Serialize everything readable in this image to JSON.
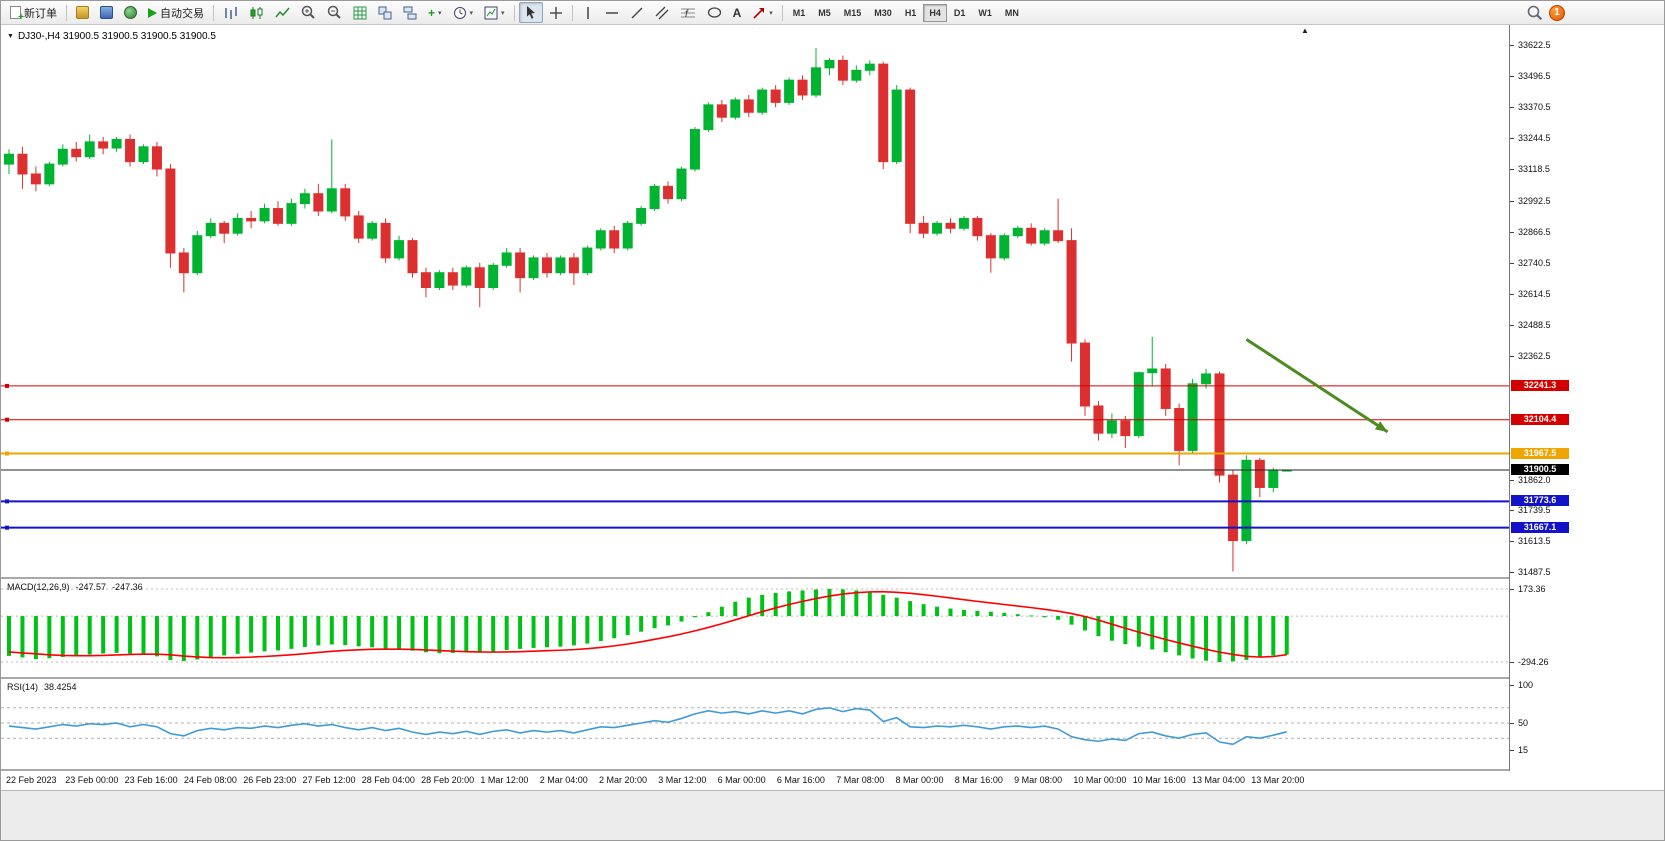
{
  "toolbar": {
    "new_order": "新订单",
    "autotrading": "自动交易",
    "timeframes": [
      "M1",
      "M5",
      "M15",
      "M30",
      "H1",
      "H4",
      "D1",
      "W1",
      "MN"
    ],
    "active_timeframe": "H4",
    "notification_count": "1"
  },
  "chart": {
    "title": "DJ30-,H4 31900.5 31900.5 31900.5 31900.5",
    "price_axis_labels": [
      "33622.5",
      "33496.5",
      "33370.5",
      "33244.5",
      "33118.5",
      "32992.5",
      "32866.5",
      "32740.5",
      "32614.5",
      "32488.5",
      "32362.5",
      "31862.0",
      "31739.5",
      "31613.5",
      "31487.5"
    ],
    "levels": [
      {
        "label": "32241.3",
        "value": 32241.3,
        "color": "#d40000",
        "width": 1
      },
      {
        "label": "32104.4",
        "value": 32104.4,
        "color": "#d40000",
        "width": 1
      },
      {
        "label": "31967.5",
        "value": 31967.5,
        "color": "#efa500",
        "width": 2
      },
      {
        "label": "31773.6",
        "value": 31773.6,
        "color": "#1212c8",
        "width": 2
      },
      {
        "label": "31667.1",
        "value": 31667.1,
        "color": "#1212c8",
        "width": 2
      }
    ],
    "current_price": {
      "label": "31900.5",
      "value": 31900.5,
      "color": "#000000",
      "width": 1
    }
  },
  "indicators": {
    "macd": {
      "label": "MACD(12,26,9)",
      "value_main": "-247.57",
      "value_signal": "-247.36",
      "axis_labels": [
        "173.36",
        "-294.26"
      ]
    },
    "rsi": {
      "label": "RSI(14)",
      "value": "38.4254",
      "axis_labels": [
        "100",
        "50",
        "15"
      ]
    }
  },
  "time_axis": [
    "22 Feb 2023",
    "23 Feb 00:00",
    "23 Feb 16:00",
    "24 Feb 08:00",
    "26 Feb 23:00",
    "27 Feb 12:00",
    "28 Feb 04:00",
    "28 Feb 20:00",
    "1 Mar 12:00",
    "2 Mar 04:00",
    "2 Mar 20:00",
    "3 Mar 12:00",
    "6 Mar 00:00",
    "6 Mar 16:00",
    "7 Mar 08:00",
    "8 Mar 00:00",
    "8 Mar 16:00",
    "9 Mar 08:00",
    "10 Mar 00:00",
    "10 Mar 16:00",
    "13 Mar 04:00",
    "13 Mar 20:00"
  ],
  "chart_data": {
    "type": "candlestick",
    "symbol": "DJ30-",
    "timeframe": "H4",
    "last_price": 31900.5,
    "price_range": [
      31487.5,
      33622.5
    ],
    "candles": [
      [
        33140,
        33200,
        33100,
        33180
      ],
      [
        33180,
        33210,
        33040,
        33100
      ],
      [
        33100,
        33130,
        33030,
        33060
      ],
      [
        33060,
        33150,
        33050,
        33140
      ],
      [
        33140,
        33220,
        33130,
        33200
      ],
      [
        33200,
        33230,
        33150,
        33170
      ],
      [
        33170,
        33260,
        33160,
        33230
      ],
      [
        33230,
        33250,
        33180,
        33205
      ],
      [
        33205,
        33250,
        33190,
        33240
      ],
      [
        33240,
        33260,
        33130,
        33150
      ],
      [
        33150,
        33220,
        33140,
        33210
      ],
      [
        33210,
        33230,
        33090,
        33120
      ],
      [
        33120,
        33140,
        32720,
        32780
      ],
      [
        32780,
        32800,
        32620,
        32700
      ],
      [
        32700,
        32870,
        32690,
        32850
      ],
      [
        32850,
        32920,
        32840,
        32900
      ],
      [
        32900,
        32910,
        32820,
        32860
      ],
      [
        32860,
        32940,
        32850,
        32920
      ],
      [
        32920,
        32950,
        32880,
        32910
      ],
      [
        32910,
        32980,
        32900,
        32960
      ],
      [
        32960,
        32990,
        32890,
        32900
      ],
      [
        32900,
        33000,
        32890,
        32980
      ],
      [
        32980,
        33040,
        32960,
        33020
      ],
      [
        33020,
        33060,
        32930,
        32950
      ],
      [
        32950,
        33240,
        32940,
        33040
      ],
      [
        33040,
        33060,
        32910,
        32930
      ],
      [
        32930,
        32950,
        32820,
        32840
      ],
      [
        32840,
        32910,
        32830,
        32900
      ],
      [
        32900,
        32920,
        32740,
        32760
      ],
      [
        32760,
        32850,
        32750,
        32830
      ],
      [
        32830,
        32840,
        32680,
        32700
      ],
      [
        32700,
        32720,
        32600,
        32640
      ],
      [
        32640,
        32710,
        32630,
        32700
      ],
      [
        32700,
        32720,
        32630,
        32650
      ],
      [
        32650,
        32730,
        32640,
        32720
      ],
      [
        32720,
        32740,
        32560,
        32640
      ],
      [
        32640,
        32740,
        32630,
        32730
      ],
      [
        32730,
        32800,
        32720,
        32780
      ],
      [
        32780,
        32800,
        32620,
        32680
      ],
      [
        32680,
        32770,
        32670,
        32760
      ],
      [
        32760,
        32780,
        32680,
        32700
      ],
      [
        32700,
        32770,
        32690,
        32760
      ],
      [
        32760,
        32780,
        32650,
        32700
      ],
      [
        32700,
        32810,
        32690,
        32800
      ],
      [
        32800,
        32880,
        32790,
        32870
      ],
      [
        32870,
        32890,
        32780,
        32800
      ],
      [
        32800,
        32910,
        32790,
        32900
      ],
      [
        32900,
        32970,
        32890,
        32960
      ],
      [
        32960,
        33060,
        32950,
        33050
      ],
      [
        33050,
        33070,
        32980,
        33000
      ],
      [
        33000,
        33130,
        32990,
        33120
      ],
      [
        33120,
        33290,
        33110,
        33280
      ],
      [
        33280,
        33390,
        33270,
        33380
      ],
      [
        33380,
        33400,
        33310,
        33330
      ],
      [
        33330,
        33410,
        33320,
        33400
      ],
      [
        33400,
        33420,
        33330,
        33350
      ],
      [
        33350,
        33450,
        33340,
        33440
      ],
      [
        33440,
        33460,
        33370,
        33390
      ],
      [
        33390,
        33490,
        33380,
        33480
      ],
      [
        33480,
        33500,
        33400,
        33420
      ],
      [
        33420,
        33610,
        33410,
        33530
      ],
      [
        33530,
        33570,
        33500,
        33560
      ],
      [
        33560,
        33580,
        33460,
        33480
      ],
      [
        33480,
        33540,
        33470,
        33520
      ],
      [
        33520,
        33560,
        33500,
        33545
      ],
      [
        33545,
        33555,
        33120,
        33150
      ],
      [
        33150,
        33460,
        33140,
        33440
      ],
      [
        33440,
        33450,
        32860,
        32900
      ],
      [
        32900,
        32930,
        32840,
        32860
      ],
      [
        32860,
        32910,
        32850,
        32900
      ],
      [
        32900,
        32920,
        32860,
        32880
      ],
      [
        32880,
        32930,
        32870,
        32920
      ],
      [
        32920,
        32930,
        32830,
        32850
      ],
      [
        32850,
        32860,
        32700,
        32760
      ],
      [
        32760,
        32860,
        32750,
        32850
      ],
      [
        32850,
        32890,
        32840,
        32880
      ],
      [
        32880,
        32900,
        32810,
        32820
      ],
      [
        32820,
        32880,
        32810,
        32870
      ],
      [
        32870,
        33000,
        32820,
        32830
      ],
      [
        32830,
        32880,
        32340,
        32415
      ],
      [
        32415,
        32430,
        32120,
        32160
      ],
      [
        32160,
        32180,
        32020,
        32050
      ],
      [
        32050,
        32130,
        32030,
        32100
      ],
      [
        32100,
        32120,
        31990,
        32040
      ],
      [
        32040,
        32300,
        32030,
        32295
      ],
      [
        32295,
        32440,
        32240,
        32310
      ],
      [
        32310,
        32330,
        32120,
        32150
      ],
      [
        32150,
        32170,
        31920,
        31980
      ],
      [
        31980,
        32270,
        31970,
        32250
      ],
      [
        32250,
        32310,
        32230,
        32290
      ],
      [
        32290,
        32300,
        31850,
        31880
      ],
      [
        31880,
        31900,
        31490,
        31615
      ],
      [
        31615,
        31960,
        31600,
        31940
      ],
      [
        31940,
        31950,
        31790,
        31830
      ],
      [
        31830,
        31910,
        31810,
        31900.5
      ],
      [
        31900.5,
        31900.5,
        31900.5,
        31900.5
      ]
    ],
    "macd": {
      "range": [
        -294.26,
        173.36
      ],
      "histogram": [
        -255,
        -265,
        -275,
        -270,
        -262,
        -252,
        -246,
        -240,
        -236,
        -240,
        -248,
        -258,
        -282,
        -288,
        -278,
        -265,
        -252,
        -242,
        -234,
        -226,
        -220,
        -210,
        -198,
        -188,
        -182,
        -186,
        -194,
        -200,
        -208,
        -214,
        -222,
        -232,
        -238,
        -236,
        -230,
        -234,
        -228,
        -218,
        -210,
        -204,
        -200,
        -196,
        -188,
        -176,
        -160,
        -142,
        -122,
        -100,
        -78,
        -60,
        -35,
        -8,
        25,
        60,
        92,
        118,
        136,
        148,
        158,
        164,
        170,
        173.36,
        171,
        164,
        152,
        136,
        118,
        96,
        76,
        60,
        48,
        40,
        34,
        28,
        20,
        12,
        4,
        -8,
        -24,
        -55,
        -92,
        -128,
        -158,
        -180,
        -196,
        -214,
        -232,
        -252,
        -272,
        -286,
        -294.26,
        -290,
        -281,
        -266,
        -253,
        -247.57
      ],
      "signal": [
        -230,
        -236,
        -242,
        -248,
        -252,
        -254,
        -254,
        -252,
        -249,
        -246,
        -244,
        -244,
        -248,
        -256,
        -262,
        -266,
        -267,
        -266,
        -263,
        -259,
        -254,
        -248,
        -241,
        -233,
        -226,
        -220,
        -216,
        -213,
        -212,
        -212,
        -214,
        -217,
        -221,
        -225,
        -228,
        -230,
        -231,
        -230,
        -228,
        -225,
        -222,
        -219,
        -215,
        -209,
        -201,
        -191,
        -179,
        -165,
        -149,
        -133,
        -115,
        -95,
        -73,
        -49,
        -24,
        2,
        28,
        52,
        74,
        94,
        112,
        128,
        141,
        150,
        155,
        156,
        152,
        146,
        137,
        127,
        116,
        105,
        94,
        84,
        74,
        64,
        54,
        43,
        31,
        16,
        -3,
        -26,
        -52,
        -78,
        -103,
        -127,
        -150,
        -172,
        -193,
        -213,
        -231,
        -246,
        -258,
        -263,
        -259,
        -247.36
      ]
    },
    "rsi": {
      "range": [
        0,
        100
      ],
      "levels": [
        70,
        50,
        30
      ],
      "values": [
        46,
        44,
        42,
        45,
        48,
        46,
        49,
        48,
        50,
        45,
        48,
        45,
        36,
        33,
        40,
        43,
        41,
        44,
        43,
        46,
        44,
        47,
        49,
        46,
        48,
        44,
        41,
        44,
        40,
        43,
        38,
        35,
        38,
        36,
        39,
        35,
        39,
        41,
        37,
        40,
        38,
        40,
        37,
        41,
        45,
        44,
        47,
        50,
        53,
        51,
        56,
        62,
        66,
        63,
        65,
        62,
        66,
        63,
        66,
        62,
        68,
        70,
        65,
        69,
        67,
        52,
        57,
        45,
        44,
        46,
        45,
        47,
        45,
        42,
        45,
        46,
        44,
        46,
        42,
        32,
        28,
        26,
        29,
        27,
        36,
        38,
        33,
        30,
        35,
        37,
        25,
        22,
        32,
        30,
        34,
        38.43
      ]
    },
    "annotation": {
      "type": "arrow",
      "color": "#4c8c1e",
      "width": 3,
      "from": {
        "index": 92,
        "price": 32430
      },
      "to": {
        "index": 102.5,
        "price": 32055
      }
    },
    "colors": {
      "up": "#00b432",
      "down": "#dc3030",
      "macd_hist": "#00c214",
      "macd_signal": "#ff0000",
      "rsi_line": "#3e9bd8"
    }
  }
}
